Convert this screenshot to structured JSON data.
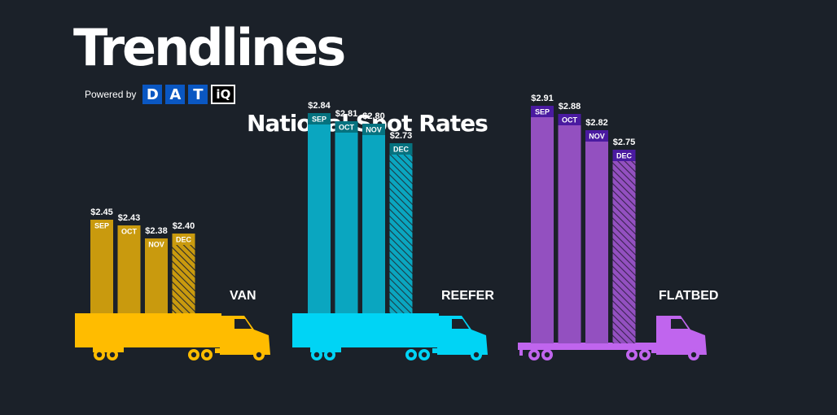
{
  "header": {
    "title": "Trendlines",
    "powered_by": "Powered by",
    "logo_letters": [
      "D",
      "A",
      "T"
    ],
    "logo_suffix": "iQ",
    "subtitle": "National Spot Rates"
  },
  "colors": {
    "background": "#1b2129",
    "van": "#ffbc00",
    "van_bar": "#c99a0e",
    "reefer": "#00d4f5",
    "reefer_bar": "#0aa6c0",
    "reefer_label": "#06727f",
    "flatbed": "#c065ee",
    "flatbed_bar": "#9350c0",
    "flatbed_label": "#4a1aa0"
  },
  "chart_data": {
    "type": "bar",
    "categories": [
      "SEP",
      "OCT",
      "NOV",
      "DEC"
    ],
    "series": [
      {
        "name": "VAN",
        "values": [
          2.45,
          2.43,
          2.38,
          2.4
        ],
        "labels": [
          "$2.45",
          "$2.43",
          "$2.38",
          "$2.40"
        ]
      },
      {
        "name": "REEFER",
        "values": [
          2.84,
          2.81,
          2.8,
          2.73
        ],
        "labels": [
          "$2.84",
          "$2.81",
          "$2.80",
          "$2.73"
        ]
      },
      {
        "name": "FLATBED",
        "values": [
          2.91,
          2.88,
          2.82,
          2.75
        ],
        "labels": [
          "$2.91",
          "$2.88",
          "$2.82",
          "$2.75"
        ]
      }
    ],
    "hatched_category": "DEC",
    "ylabel": "",
    "xlabel": ""
  }
}
